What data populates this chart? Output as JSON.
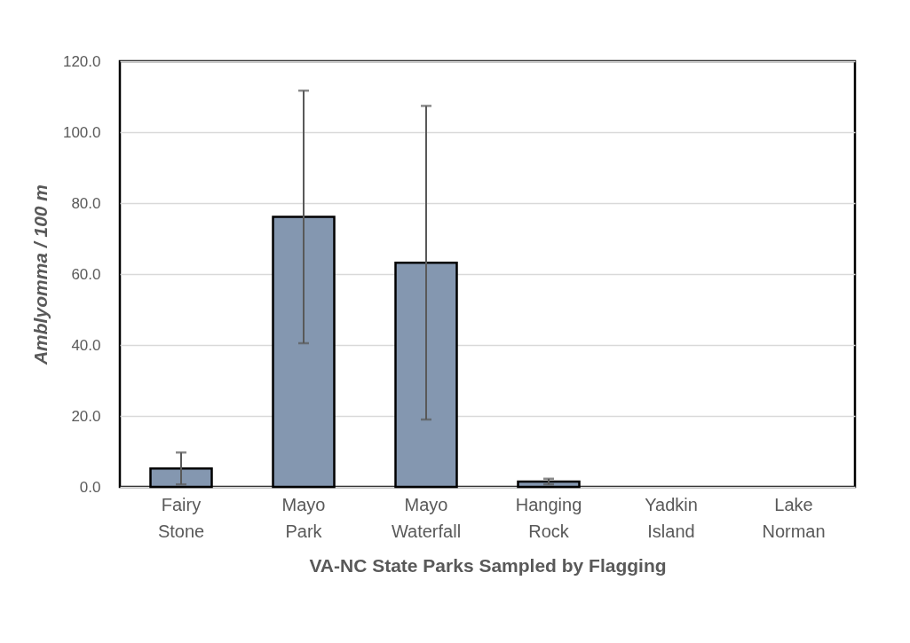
{
  "chart_data": {
    "type": "bar",
    "categories": [
      "Fairy Stone",
      "Mayo Park",
      "Mayo Waterfall",
      "Hanging Rock",
      "Yadkin Island",
      "Lake Norman"
    ],
    "values": [
      5.2,
      76.1,
      63.2,
      1.5,
      0,
      0
    ],
    "errors": [
      4.5,
      35.6,
      44.2,
      0.8,
      null,
      null
    ],
    "color": "#8497b0",
    "xlabel": "VA-NC State Parks Sampled by Flagging",
    "ylabel": "Amblyomma / 100 m",
    "ylim": [
      0,
      120
    ],
    "yticks": [
      {
        "value": 0,
        "label": "0.0"
      },
      {
        "value": 20,
        "label": "20.0"
      },
      {
        "value": 40,
        "label": "40.0"
      },
      {
        "value": 60,
        "label": "60.0"
      },
      {
        "value": 80,
        "label": "80.0"
      },
      {
        "value": 100,
        "label": "100.0"
      },
      {
        "value": 120,
        "label": "120.0"
      }
    ],
    "grid": "y"
  }
}
